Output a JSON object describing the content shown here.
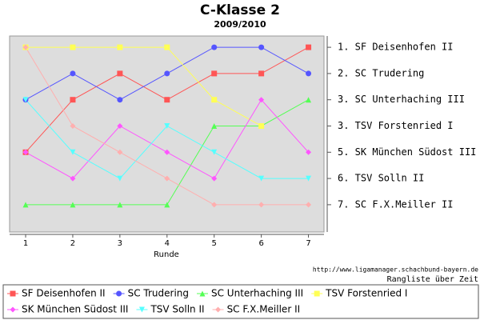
{
  "chart_data": {
    "type": "line",
    "title": "C-Klasse 2",
    "subtitle": "2009/2010",
    "x_label": "Runde",
    "annotations": [
      "http://www.ligamanager.schachbund-bayern.de",
      "Rangliste über Zeit"
    ],
    "x": [
      1,
      2,
      3,
      4,
      5,
      6,
      7
    ],
    "xlim": [
      0.66,
      7.33
    ],
    "xticks": [
      1,
      2,
      3,
      4,
      5,
      6,
      7
    ],
    "ylim": [
      0.57,
      8.04
    ],
    "y_inverted": true,
    "yticks": [
      {
        "value": 1,
        "label": "1. SF Deisenhofen II"
      },
      {
        "value": 2,
        "label": "2. SC Trudering"
      },
      {
        "value": 3,
        "label": "3. SC Unterhaching III"
      },
      {
        "value": 4,
        "label": "3. TSV Forstenried I"
      },
      {
        "value": 5,
        "label": "5. SK München Südost III"
      },
      {
        "value": 6,
        "label": "6. TSV Solln II"
      },
      {
        "value": 7,
        "label": "7. SC F.X.Meiller II"
      }
    ],
    "legend": "bottom",
    "series": [
      {
        "name": "SF Deisenhofen II",
        "color": "#ff5555",
        "marker": "square",
        "values": [
          5,
          3,
          2,
          3,
          2,
          2,
          1
        ]
      },
      {
        "name": "SC Trudering",
        "color": "#5555ff",
        "marker": "circle",
        "values": [
          3,
          2,
          3,
          2,
          1,
          1,
          2
        ]
      },
      {
        "name": "SC Unterhaching III",
        "color": "#55ff55",
        "marker": "triangle-up",
        "values": [
          7,
          7,
          7,
          7,
          4,
          4,
          3
        ]
      },
      {
        "name": "TSV Forstenried I",
        "color": "#ffff55",
        "marker": "square",
        "values": [
          1,
          1,
          1,
          1,
          3,
          4,
          null
        ]
      },
      {
        "name": "SK München Südost III",
        "color": "#ff55ff",
        "marker": "diamond",
        "values": [
          5,
          6,
          4,
          5,
          6,
          3,
          5
        ]
      },
      {
        "name": "TSV Solln II",
        "color": "#55ffff",
        "marker": "triangle-down",
        "values": [
          3,
          5,
          6,
          4,
          5,
          6,
          6
        ]
      },
      {
        "name": "SC F.X.Meiller II",
        "color": "#ffafaf",
        "marker": "diamond",
        "values": [
          1,
          4,
          5,
          6,
          7,
          7,
          7
        ]
      }
    ]
  }
}
